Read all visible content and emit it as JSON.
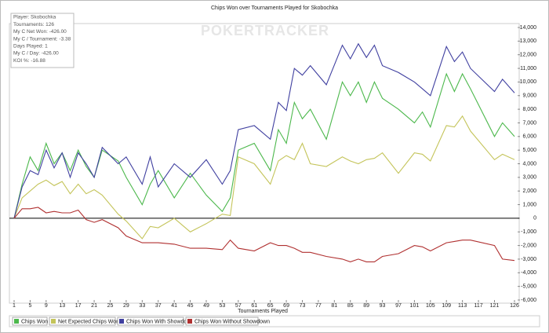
{
  "chart_data": {
    "type": "line",
    "title": "Chips Won over Tournaments Played for Skobochka",
    "x_label": "Tournaments Played",
    "watermark": "POKERTRACKER",
    "info_box": [
      "Player: Skobochka",
      "Tournaments: 126",
      "My C Net Won: -426.00",
      "My C / Tournament: -3.38",
      "Days Played: 1",
      "My C / Day: -426.00",
      "KOI %: -16.88"
    ],
    "x": [
      1,
      3,
      5,
      7,
      9,
      11,
      13,
      15,
      17,
      19,
      21,
      23,
      27,
      29,
      33,
      35,
      37,
      41,
      45,
      49,
      53,
      55,
      57,
      61,
      65,
      67,
      69,
      71,
      73,
      75,
      79,
      83,
      85,
      87,
      89,
      91,
      93,
      97,
      101,
      103,
      105,
      109,
      111,
      113,
      115,
      121,
      123,
      126
    ],
    "series": [
      {
        "name": "Chips Won",
        "color": "#4cb84c",
        "values": [
          0,
          2500,
          4500,
          3500,
          5500,
          4000,
          4800,
          3500,
          5000,
          3800,
          3000,
          5000,
          4200,
          3000,
          1000,
          2500,
          3500,
          1500,
          3300,
          1700,
          500,
          1500,
          5000,
          5500,
          3500,
          6500,
          5500,
          8500,
          7300,
          8000,
          5800,
          10000,
          9000,
          10000,
          8500,
          10000,
          8800,
          8000,
          7000,
          7800,
          6700,
          10600,
          9300,
          10600,
          9500,
          6000,
          7000,
          6000
        ]
      },
      {
        "name": "Net Expected Chips Won",
        "color": "#c4c45a",
        "values": [
          0,
          1500,
          2000,
          2500,
          2800,
          2400,
          2700,
          1800,
          2500,
          1800,
          2100,
          1700,
          300,
          -200,
          -1500,
          -600,
          -700,
          0,
          -1000,
          -400,
          300,
          200,
          4500,
          4000,
          2500,
          4200,
          4600,
          4300,
          5500,
          4000,
          3800,
          4500,
          4200,
          4000,
          4300,
          4400,
          4800,
          3300,
          4800,
          4700,
          4200,
          6800,
          6700,
          7500,
          6400,
          4300,
          4700,
          4300
        ]
      },
      {
        "name": "Chips Won With Showdown",
        "color": "#4040a0",
        "values": [
          0,
          2300,
          3500,
          3200,
          5000,
          3700,
          4800,
          3000,
          4800,
          4000,
          3000,
          5200,
          4000,
          4500,
          2500,
          4500,
          2300,
          4000,
          3000,
          4300,
          2500,
          3500,
          6500,
          6800,
          5800,
          8500,
          7900,
          11000,
          10500,
          11200,
          9800,
          12700,
          11700,
          12800,
          11800,
          12700,
          11200,
          10700,
          10000,
          9500,
          9000,
          12600,
          11500,
          12200,
          11000,
          9300,
          10200,
          9200
        ]
      },
      {
        "name": "Chips Won Without Showdown",
        "color": "#b03030",
        "values": [
          0,
          700,
          700,
          800,
          400,
          500,
          400,
          400,
          600,
          -100,
          -300,
          -100,
          -700,
          -1300,
          -1800,
          -1800,
          -1800,
          -1900,
          -2200,
          -2200,
          -2300,
          -1600,
          -2200,
          -2400,
          -1800,
          -2000,
          -2000,
          -2200,
          -2500,
          -2500,
          -2800,
          -3000,
          -3200,
          -3000,
          -3200,
          -3200,
          -2800,
          -2600,
          -2000,
          -2100,
          -2400,
          -1800,
          -1700,
          -1600,
          -1600,
          -2000,
          -3000,
          -3100
        ]
      }
    ],
    "xlim": [
      1,
      126
    ],
    "xticks": [
      1,
      5,
      9,
      13,
      17,
      21,
      25,
      29,
      33,
      37,
      41,
      45,
      49,
      53,
      57,
      61,
      65,
      69,
      73,
      77,
      81,
      85,
      89,
      93,
      97,
      101,
      105,
      109,
      113,
      117,
      121,
      126
    ],
    "ylim": [
      -6000,
      14000
    ],
    "yticks": [
      {
        "value": -6000,
        "label": "-6,000"
      },
      {
        "value": -5000,
        "label": "-5,000"
      },
      {
        "value": -4000,
        "label": "-4,000"
      },
      {
        "value": -3000,
        "label": "-3,000"
      },
      {
        "value": -2000,
        "label": "-2,000"
      },
      {
        "value": -1000,
        "label": "-1,000"
      },
      0,
      {
        "value": 1000,
        "label": "1,000"
      },
      {
        "value": 2000,
        "label": "2,000"
      },
      {
        "value": 3000,
        "label": "3,000"
      },
      {
        "value": 4000,
        "label": "4,000"
      },
      {
        "value": 5000,
        "label": "5,000"
      },
      {
        "value": 6000,
        "label": "6,000"
      },
      {
        "value": 7000,
        "label": "7,000"
      },
      {
        "value": 8000,
        "label": "8,000"
      },
      {
        "value": 9000,
        "label": "9,000"
      },
      {
        "value": 10000,
        "label": "10,000"
      },
      {
        "value": 11000,
        "label": "11,000"
      },
      {
        "value": 12000,
        "label": "12,000"
      },
      {
        "value": 13000,
        "label": "13,000"
      },
      {
        "value": 14000,
        "label": "14,000"
      }
    ],
    "zero_line": true,
    "legend": "bottom-left"
  }
}
